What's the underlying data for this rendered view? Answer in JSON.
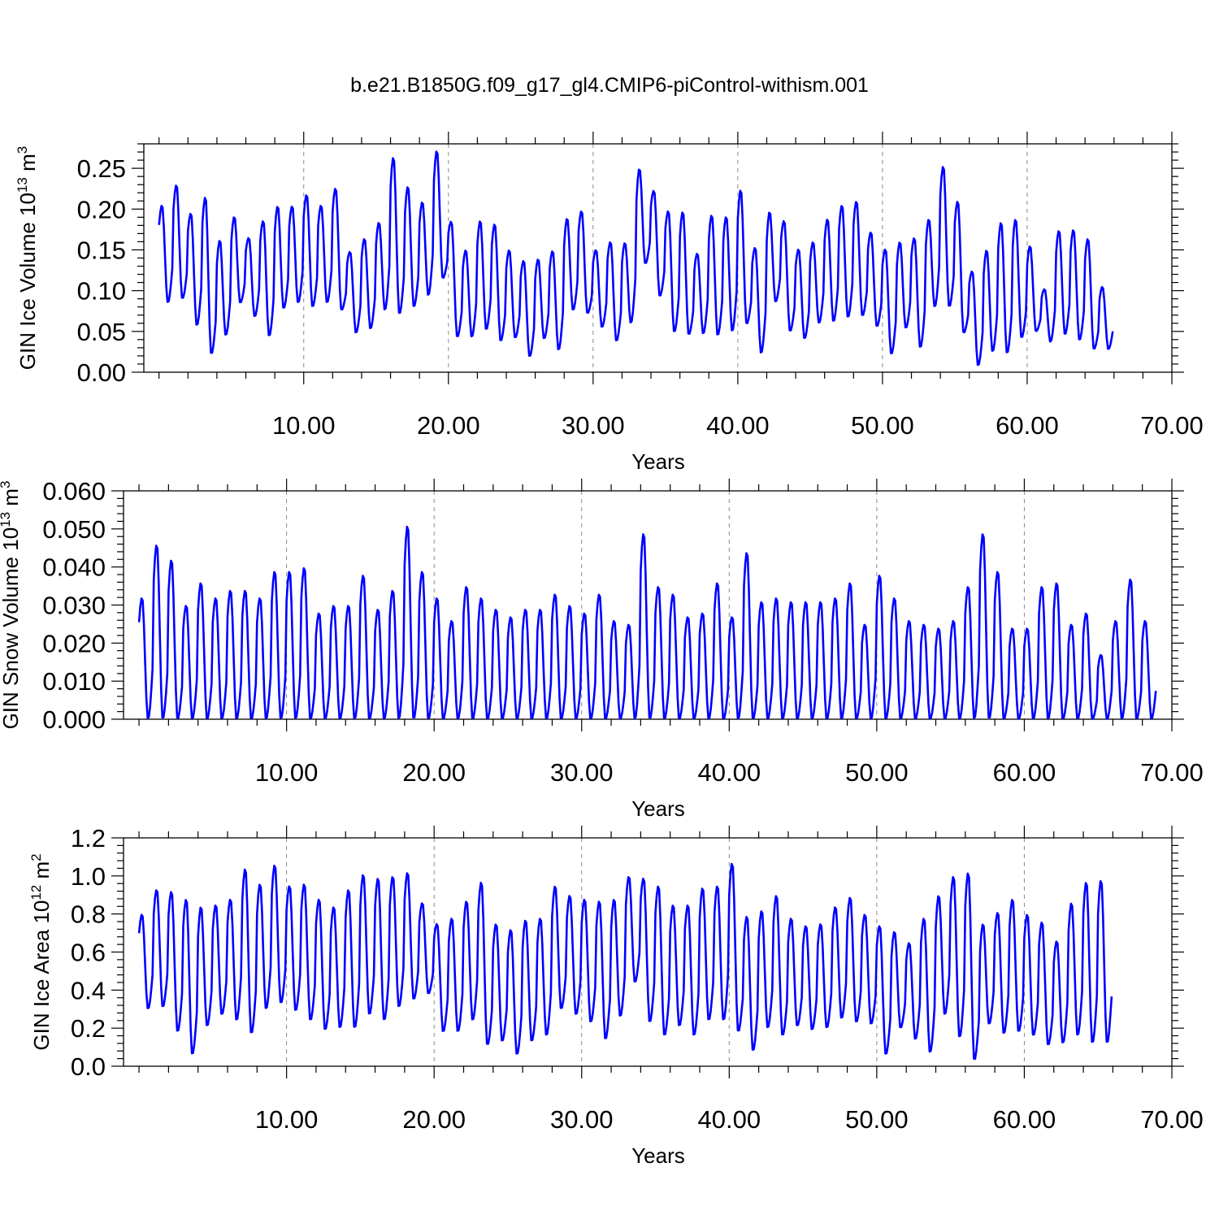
{
  "title": "b.e21.B1850G.f09_g17_gl4.CMIP6-piControl-withism.001",
  "chart_data": [
    {
      "type": "line",
      "name": "ice-volume",
      "ylabel": {
        "base": "GIN Ice Volume 10",
        "exp": "13",
        "unit": " m",
        "unit_exp": "3"
      },
      "xlabel": "Years",
      "xlim": [
        -1.05,
        70.0
      ],
      "ylim": [
        0.0,
        0.28
      ],
      "xticks": [
        10,
        20,
        30,
        40,
        50,
        60,
        70
      ],
      "xticklabels": [
        "10.00",
        "20.00",
        "30.00",
        "40.00",
        "50.00",
        "60.00",
        "70.00"
      ],
      "yticks": [
        0.0,
        0.05,
        0.1,
        0.15,
        0.2,
        0.25
      ],
      "yticklabels": [
        "0.00",
        "0.05",
        "0.10",
        "0.15",
        "0.20",
        "0.25"
      ],
      "grid_x": true,
      "color": "#0000ff",
      "annual": {
        "max": [
          0.205,
          0.23,
          0.195,
          0.215,
          0.162,
          0.191,
          0.165,
          0.186,
          0.204,
          0.204,
          0.218,
          0.205,
          0.226,
          0.148,
          0.164,
          0.184,
          0.264,
          0.228,
          0.209,
          0.272,
          0.185,
          0.15,
          0.186,
          0.182,
          0.15,
          0.137,
          0.139,
          0.149,
          0.189,
          0.198,
          0.15,
          0.16,
          0.159,
          0.25,
          0.223,
          0.198,
          0.197,
          0.146,
          0.193,
          0.191,
          0.224,
          0.153,
          0.197,
          0.186,
          0.151,
          0.16,
          0.188,
          0.205,
          0.21,
          0.172,
          0.151,
          0.16,
          0.165,
          0.188,
          0.253,
          0.21,
          0.124,
          0.15,
          0.184,
          0.188,
          0.155,
          0.102,
          0.174,
          0.175,
          0.164,
          0.105
        ],
        "min": [
          0.085,
          0.09,
          0.057,
          0.022,
          0.045,
          0.085,
          0.068,
          0.044,
          0.078,
          0.085,
          0.08,
          0.085,
          0.076,
          0.048,
          0.053,
          0.076,
          0.071,
          0.08,
          0.094,
          0.115,
          0.043,
          0.043,
          0.052,
          0.038,
          0.042,
          0.019,
          0.041,
          0.027,
          0.076,
          0.072,
          0.055,
          0.038,
          0.06,
          0.133,
          0.093,
          0.049,
          0.046,
          0.047,
          0.045,
          0.05,
          0.059,
          0.023,
          0.086,
          0.05,
          0.041,
          0.06,
          0.062,
          0.067,
          0.069,
          0.056,
          0.022,
          0.054,
          0.03,
          0.08,
          0.08,
          0.048,
          0.008,
          0.025,
          0.023,
          0.042,
          0.05,
          0.037,
          0.046,
          0.039,
          0.028,
          0.028
        ]
      }
    },
    {
      "type": "line",
      "name": "snow-volume",
      "ylabel": {
        "base": "GIN Snow Volume 10",
        "exp": "13",
        "unit": " m",
        "unit_exp": "3"
      },
      "xlabel": "Years",
      "xlim": [
        -1.05,
        70.0
      ],
      "ylim": [
        0.0,
        0.06
      ],
      "xticks": [
        10,
        20,
        30,
        40,
        50,
        60,
        70
      ],
      "xticklabels": [
        "10.00",
        "20.00",
        "30.00",
        "40.00",
        "50.00",
        "60.00",
        "70.00"
      ],
      "yticks": [
        0.0,
        0.01,
        0.02,
        0.03,
        0.04,
        0.05,
        0.06
      ],
      "yticklabels": [
        "0.000",
        "0.010",
        "0.020",
        "0.030",
        "0.040",
        "0.050",
        "0.060"
      ],
      "grid_x": true,
      "color": "#0000ff",
      "annual": {
        "max": [
          0.032,
          0.046,
          0.042,
          0.03,
          0.036,
          0.032,
          0.034,
          0.034,
          0.032,
          0.039,
          0.039,
          0.04,
          0.028,
          0.03,
          0.03,
          0.038,
          0.029,
          0.034,
          0.051,
          0.039,
          0.032,
          0.026,
          0.035,
          0.032,
          0.029,
          0.027,
          0.029,
          0.029,
          0.033,
          0.03,
          0.028,
          0.033,
          0.026,
          0.025,
          0.049,
          0.035,
          0.033,
          0.027,
          0.028,
          0.036,
          0.027,
          0.044,
          0.031,
          0.032,
          0.031,
          0.031,
          0.031,
          0.032,
          0.036,
          0.025,
          0.038,
          0.032,
          0.026,
          0.025,
          0.024,
          0.026,
          0.035,
          0.049,
          0.039,
          0.024,
          0.024,
          0.035,
          0.036,
          0.025,
          0.028,
          0.017,
          0.026,
          0.037,
          0.026
        ],
        "min": [
          0.0,
          0.0,
          0.0,
          0.0,
          0.0,
          0.0,
          0.0,
          0.0,
          0.0,
          0.0,
          0.0,
          0.0,
          0.0,
          0.0,
          0.0,
          0.0,
          0.0,
          0.0,
          0.0,
          0.0,
          0.0,
          0.0,
          0.0,
          0.0,
          0.0,
          0.0,
          0.0,
          0.0,
          0.0,
          0.0,
          0.0,
          0.0,
          0.0,
          0.0,
          0.0,
          0.0,
          0.0,
          0.0,
          0.0,
          0.0,
          0.0,
          0.0,
          0.0,
          0.0,
          0.0,
          0.0,
          0.0,
          0.0,
          0.0,
          0.0,
          0.0,
          0.0,
          0.0,
          0.0,
          0.0,
          0.0,
          0.0,
          0.0,
          0.0,
          0.0,
          0.0,
          0.0,
          0.0,
          0.0,
          0.0,
          0.0,
          0.0,
          0.0,
          0.0
        ]
      }
    },
    {
      "type": "line",
      "name": "ice-area",
      "ylabel": {
        "base": "GIN Ice Area 10",
        "exp": "12",
        "unit": " m",
        "unit_exp": "2"
      },
      "xlabel": "Years",
      "xlim": [
        -1.05,
        70.0
      ],
      "ylim": [
        0.0,
        1.2
      ],
      "xticks": [
        10,
        20,
        30,
        40,
        50,
        60,
        70
      ],
      "xticklabels": [
        "10.00",
        "20.00",
        "30.00",
        "40.00",
        "50.00",
        "60.00",
        "70.00"
      ],
      "yticks": [
        0.0,
        0.2,
        0.4,
        0.6,
        0.8,
        1.0,
        1.2
      ],
      "yticklabels": [
        "0.0",
        "0.2",
        "0.4",
        "0.6",
        "0.8",
        "1.0",
        "1.2"
      ],
      "grid_x": true,
      "color": "#0000ff",
      "annual": {
        "max": [
          0.8,
          0.93,
          0.92,
          0.88,
          0.84,
          0.85,
          0.88,
          1.04,
          0.96,
          1.06,
          0.95,
          0.96,
          0.88,
          0.84,
          0.93,
          1.01,
          0.99,
          1.0,
          1.02,
          0.86,
          0.75,
          0.78,
          0.87,
          0.97,
          0.75,
          0.72,
          0.77,
          0.78,
          0.95,
          0.9,
          0.88,
          0.87,
          0.88,
          1.0,
          0.99,
          0.95,
          0.85,
          0.85,
          0.94,
          0.95,
          1.07,
          0.79,
          0.82,
          0.9,
          0.78,
          0.74,
          0.75,
          0.84,
          0.89,
          0.8,
          0.74,
          0.71,
          0.65,
          0.78,
          0.9,
          1.0,
          1.02,
          0.75,
          0.81,
          0.88,
          0.8,
          0.76,
          0.66,
          0.86,
          0.97,
          0.98
        ],
        "min": [
          0.3,
          0.31,
          0.18,
          0.06,
          0.21,
          0.27,
          0.24,
          0.17,
          0.3,
          0.33,
          0.29,
          0.24,
          0.19,
          0.2,
          0.2,
          0.27,
          0.24,
          0.31,
          0.35,
          0.38,
          0.18,
          0.18,
          0.24,
          0.11,
          0.13,
          0.06,
          0.13,
          0.16,
          0.3,
          0.27,
          0.23,
          0.14,
          0.26,
          0.44,
          0.23,
          0.16,
          0.21,
          0.16,
          0.24,
          0.24,
          0.18,
          0.08,
          0.2,
          0.16,
          0.21,
          0.19,
          0.2,
          0.25,
          0.23,
          0.22,
          0.06,
          0.2,
          0.14,
          0.07,
          0.27,
          0.15,
          0.03,
          0.22,
          0.17,
          0.18,
          0.16,
          0.11,
          0.12,
          0.16,
          0.12,
          0.12
        ]
      }
    }
  ]
}
